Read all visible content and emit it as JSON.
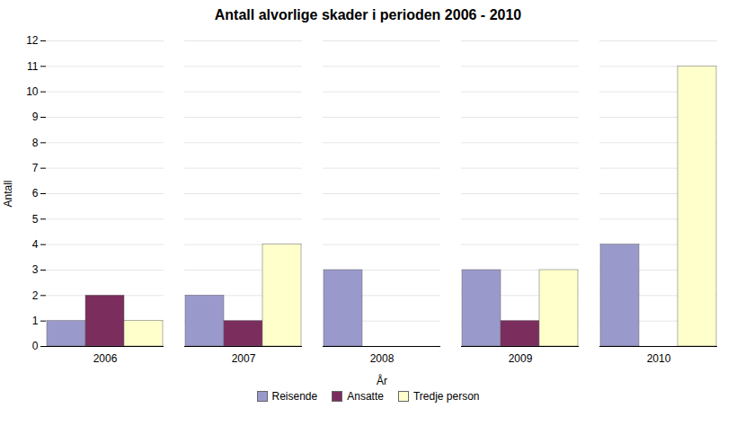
{
  "chart_data": {
    "type": "bar",
    "title": "Antall alvorlige skader i perioden 2006 - 2010",
    "xlabel": "År",
    "ylabel": "Antall",
    "categories": [
      "2006",
      "2007",
      "2008",
      "2009",
      "2010"
    ],
    "series": [
      {
        "name": "Reisende",
        "color": "#9999cc",
        "values": [
          1,
          2,
          3,
          3,
          4
        ]
      },
      {
        "name": "Ansatte",
        "color": "#7b2d5e",
        "values": [
          2,
          1,
          0,
          1,
          0
        ]
      },
      {
        "name": "Tredje person",
        "color": "#ffffcc",
        "values": [
          1,
          4,
          0,
          3,
          11
        ]
      }
    ],
    "ylim": [
      0,
      12
    ],
    "yticks": [
      0,
      1,
      2,
      3,
      4,
      5,
      6,
      7,
      8,
      9,
      10,
      11,
      12
    ],
    "grid": true,
    "legend": "bottom"
  }
}
